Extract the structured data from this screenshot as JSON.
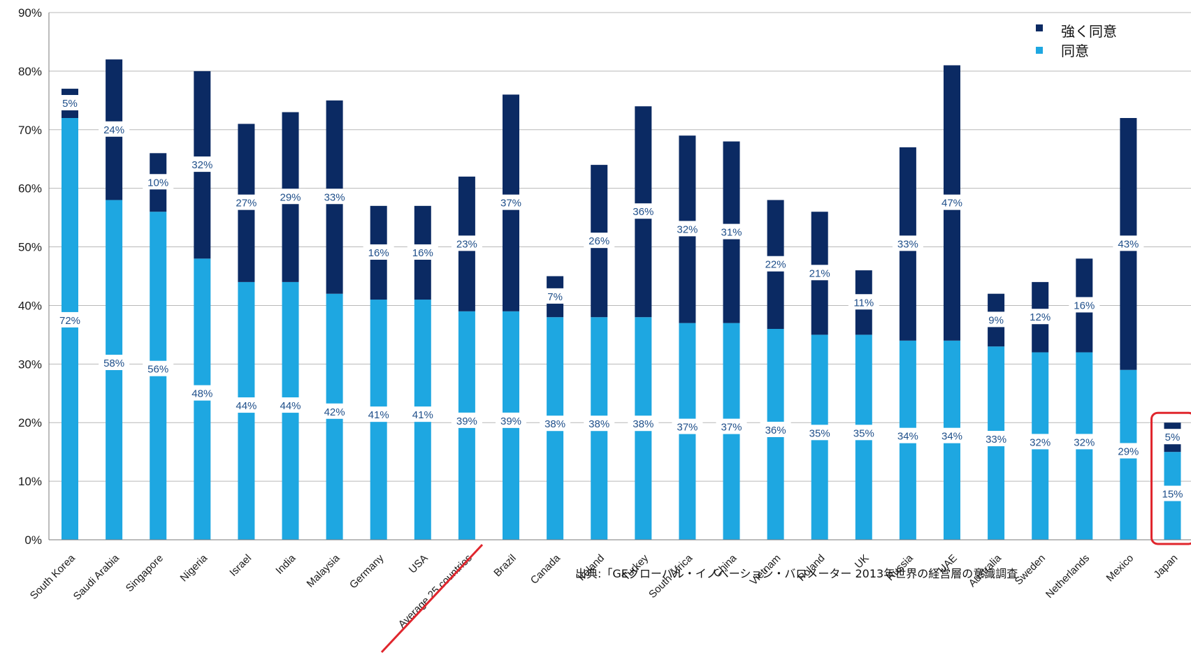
{
  "chart_data": {
    "type": "bar",
    "stacked": true,
    "categories": [
      "South Korea",
      "Saudi Arabia",
      "Singapore",
      "Nigeria",
      "Israel",
      "India",
      "Malaysia",
      "Germany",
      "USA",
      "Average 25 countries",
      "Brazil",
      "Canada",
      "Ireland",
      "Turkey",
      "South Africa",
      "China",
      "Vietnam",
      "Poland",
      "UK",
      "Russia",
      "UAE",
      "Australia",
      "Sweden",
      "Netherlands",
      "Mexico",
      "Japan"
    ],
    "series": [
      {
        "name": "同意",
        "color": "#1ea7e1",
        "values": [
          72,
          58,
          56,
          48,
          44,
          44,
          42,
          41,
          41,
          39,
          39,
          38,
          38,
          38,
          37,
          37,
          36,
          35,
          35,
          34,
          34,
          33,
          32,
          32,
          29,
          15
        ]
      },
      {
        "name": "強く同意",
        "color": "#0b2a63",
        "values": [
          5,
          24,
          10,
          32,
          27,
          29,
          33,
          16,
          16,
          23,
          37,
          7,
          26,
          36,
          32,
          31,
          22,
          21,
          11,
          33,
          47,
          9,
          12,
          16,
          43,
          5
        ]
      }
    ],
    "yticks": [
      "0%",
      "10%",
      "20%",
      "30%",
      "40%",
      "50%",
      "60%",
      "70%",
      "80%",
      "90%"
    ],
    "ylim": [
      0,
      90
    ],
    "grid": true,
    "legend_position": "top-right",
    "highlight_category": "Japan",
    "annotation_category": "Average 25 countries"
  },
  "source_note": "出典:「GEグローバル・イノベーション・バロメーター 2013年世界の経営層の意識調査"
}
